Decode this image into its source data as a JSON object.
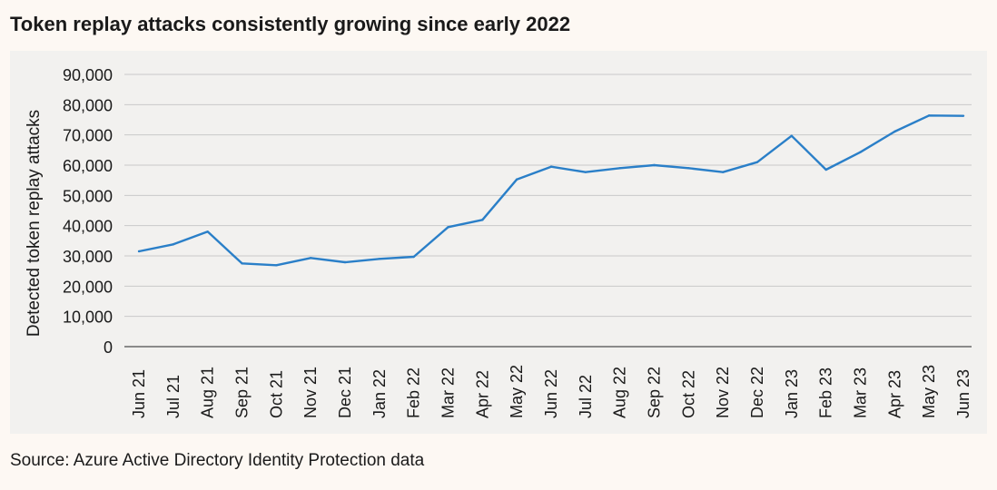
{
  "chart_data": {
    "type": "line",
    "title": "Token replay attacks consistently growing since early 2022",
    "xlabel": "",
    "ylabel": "Detected token replay attacks",
    "ylim": [
      0,
      90000
    ],
    "yticks": [
      "0",
      "10,000",
      "20,000",
      "30,000",
      "40,000",
      "50,000",
      "60,000",
      "70,000",
      "80,000",
      "90,000"
    ],
    "ytick_values": [
      0,
      10000,
      20000,
      30000,
      40000,
      50000,
      60000,
      70000,
      80000,
      90000
    ],
    "grid": true,
    "color": "#2a7fc8",
    "categories": [
      "Jun 21",
      "Jul 21",
      "Aug 21",
      "Sep 21",
      "Oct 21",
      "Nov 21",
      "Dec 21",
      "Jan 22",
      "Feb 22",
      "Mar 22",
      "Apr 22",
      "May 22",
      "Jun 22",
      "Jul 22",
      "Aug 22",
      "Sep 22",
      "Oct 22",
      "Nov 22",
      "Dec 22",
      "Jan 23",
      "Feb 23",
      "Mar 23",
      "Apr 23",
      "May 23",
      "Jun 23"
    ],
    "series": [
      {
        "name": "Detected token replay attacks",
        "values": [
          31500,
          33800,
          38000,
          27500,
          26900,
          29300,
          27900,
          29000,
          29700,
          39500,
          41900,
          55300,
          59500,
          57700,
          59000,
          60000,
          59000,
          57700,
          61000,
          69700,
          58500,
          64300,
          71100,
          76400,
          76300
        ]
      }
    ]
  },
  "source": "Source: Azure Active Directory Identity Protection data"
}
